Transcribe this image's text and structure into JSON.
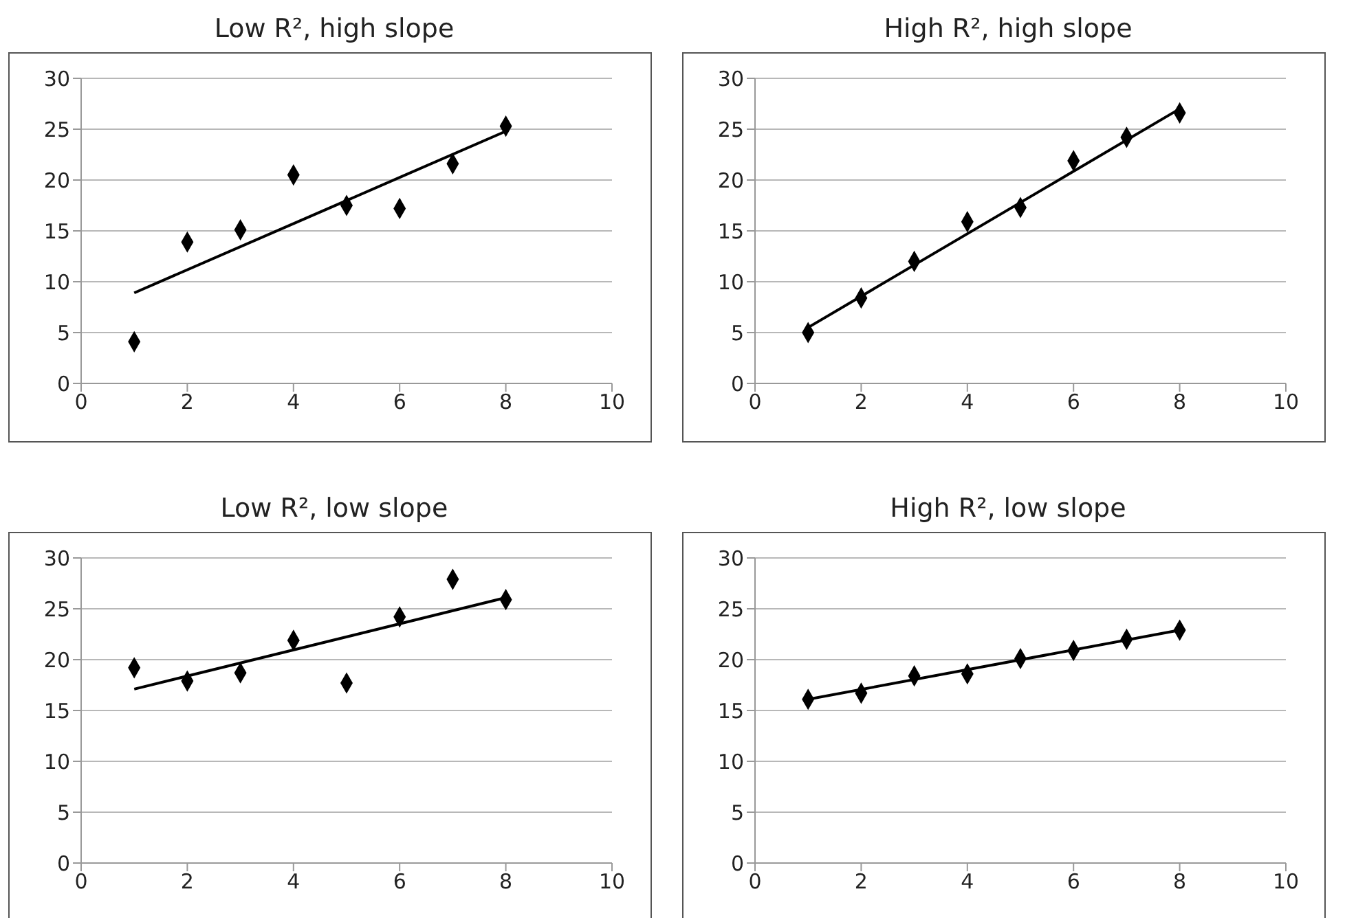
{
  "chart_data": [
    {
      "type": "scatter",
      "title": "Low R², high slope",
      "xlim": [
        0,
        10
      ],
      "xticks": [
        0,
        2,
        4,
        6,
        8,
        10
      ],
      "ylim": [
        0,
        30
      ],
      "yticks": [
        0,
        5,
        10,
        15,
        20,
        25,
        30
      ],
      "grid": "y",
      "legend": false,
      "marker": "diamond",
      "series": [
        {
          "color": "#000000",
          "x": [
            1,
            2,
            3,
            4,
            5,
            6,
            7,
            8
          ],
          "values": [
            4.1,
            13.9,
            15.1,
            20.5,
            17.5,
            17.2,
            21.6,
            25.3
          ]
        },
        {
          "type": "line",
          "color": "#000000",
          "line_style": "solid",
          "marker": "none",
          "x": [
            1,
            8
          ],
          "values": [
            8.9,
            24.8
          ]
        }
      ]
    },
    {
      "type": "scatter",
      "title": "High R², high slope",
      "xlim": [
        0,
        10
      ],
      "xticks": [
        0,
        2,
        4,
        6,
        8,
        10
      ],
      "ylim": [
        0,
        30
      ],
      "yticks": [
        0,
        5,
        10,
        15,
        20,
        25,
        30
      ],
      "grid": "y",
      "legend": false,
      "marker": "diamond",
      "series": [
        {
          "color": "#000000",
          "x": [
            1,
            2,
            3,
            4,
            5,
            6,
            7,
            8
          ],
          "values": [
            5.0,
            8.4,
            12.0,
            15.9,
            17.3,
            21.9,
            24.2,
            26.6
          ]
        },
        {
          "type": "line",
          "color": "#000000",
          "line_style": "solid",
          "marker": "none",
          "x": [
            1,
            8
          ],
          "values": [
            5.5,
            27.0
          ]
        }
      ]
    },
    {
      "type": "scatter",
      "title": "Low R², low slope",
      "xlim": [
        0,
        10
      ],
      "xticks": [
        0,
        2,
        4,
        6,
        8,
        10
      ],
      "ylim": [
        0,
        30
      ],
      "yticks": [
        0,
        5,
        10,
        15,
        20,
        25,
        30
      ],
      "grid": "y",
      "legend": false,
      "marker": "diamond",
      "series": [
        {
          "color": "#000000",
          "x": [
            1,
            2,
            3,
            4,
            5,
            6,
            7,
            8
          ],
          "values": [
            19.2,
            17.9,
            18.7,
            21.9,
            17.7,
            24.2,
            27.9,
            25.9
          ]
        },
        {
          "type": "line",
          "color": "#000000",
          "line_style": "solid",
          "marker": "none",
          "x": [
            1,
            8
          ],
          "values": [
            17.1,
            26.1
          ]
        }
      ]
    },
    {
      "type": "scatter",
      "title": "High R², low slope",
      "xlim": [
        0,
        10
      ],
      "xticks": [
        0,
        2,
        4,
        6,
        8,
        10
      ],
      "ylim": [
        0,
        30
      ],
      "yticks": [
        0,
        5,
        10,
        15,
        20,
        25,
        30
      ],
      "grid": "y",
      "legend": false,
      "marker": "diamond",
      "series": [
        {
          "color": "#000000",
          "x": [
            1,
            2,
            3,
            4,
            5,
            6,
            7,
            8
          ],
          "values": [
            16.1,
            16.7,
            18.4,
            18.6,
            20.1,
            20.9,
            22.0,
            22.9
          ]
        },
        {
          "type": "line",
          "color": "#000000",
          "line_style": "solid",
          "marker": "none",
          "x": [
            1,
            8
          ],
          "values": [
            16.1,
            22.9
          ]
        }
      ]
    }
  ]
}
